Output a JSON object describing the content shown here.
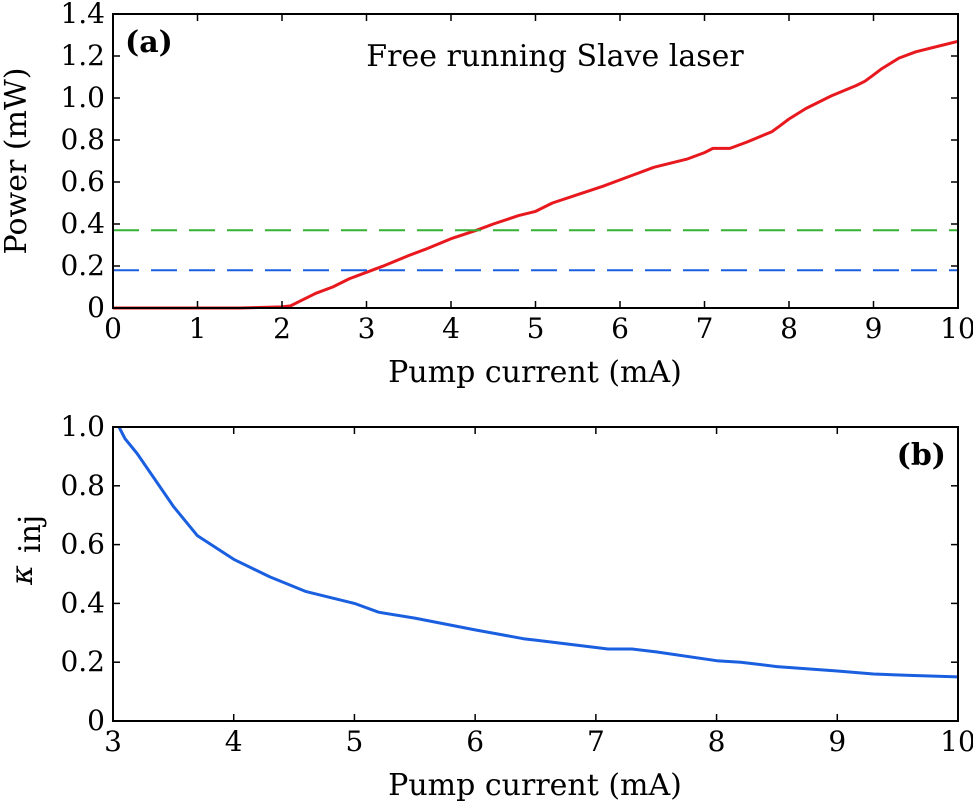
{
  "chart_data": [
    {
      "type": "line",
      "panel_label": "(a)",
      "annotation": "Free running Slave laser",
      "xlabel": "Pump current (mA)",
      "ylabel": "Power (mW)",
      "xlim": [
        0,
        10
      ],
      "ylim": [
        0,
        1.4
      ],
      "xticks": [
        "0",
        "1",
        "2",
        "3",
        "4",
        "5",
        "6",
        "7",
        "8",
        "9",
        "10"
      ],
      "yticks": [
        "0",
        "0.2",
        "0.4",
        "0.6",
        "0.8",
        "1.0",
        "1.2",
        "1.4"
      ],
      "grid": false,
      "series": [
        {
          "color": "#e8191e",
          "style": "solid",
          "x": [
            0,
            1,
            1.5,
            2.0,
            2.1,
            2.2,
            2.4,
            2.6,
            2.8,
            3.0,
            3.2,
            3.5,
            3.7,
            4.0,
            4.3,
            4.5,
            4.8,
            5.0,
            5.2,
            5.5,
            5.8,
            6.0,
            6.2,
            6.4,
            6.5,
            6.8,
            7.0,
            7.1,
            7.3,
            7.5,
            7.8,
            7.9,
            8.0,
            8.2,
            8.5,
            8.8,
            8.9,
            9.0,
            9.1,
            9.3,
            9.5,
            9.8,
            10.0
          ],
          "y": [
            0,
            0,
            0,
            0.005,
            0.01,
            0.03,
            0.07,
            0.1,
            0.14,
            0.17,
            0.2,
            0.25,
            0.28,
            0.33,
            0.37,
            0.4,
            0.44,
            0.46,
            0.5,
            0.54,
            0.58,
            0.61,
            0.64,
            0.67,
            0.68,
            0.71,
            0.74,
            0.76,
            0.76,
            0.79,
            0.84,
            0.87,
            0.9,
            0.95,
            1.01,
            1.06,
            1.08,
            1.11,
            1.14,
            1.19,
            1.22,
            1.25,
            1.27
          ]
        },
        {
          "color": "#33b233",
          "style": "dashed",
          "x": [
            0,
            10
          ],
          "y": [
            0.37,
            0.37
          ]
        },
        {
          "color": "#1a5fe0",
          "style": "dashed",
          "x": [
            0,
            10
          ],
          "y": [
            0.18,
            0.18
          ]
        }
      ]
    },
    {
      "type": "line",
      "panel_label": "(b)",
      "xlabel": "Pump current (mA)",
      "ylabel_main": "κ",
      "ylabel_sub": "inj",
      "xlim": [
        3,
        10
      ],
      "ylim": [
        0,
        1.0
      ],
      "xticks": [
        "3",
        "4",
        "5",
        "6",
        "7",
        "8",
        "9",
        "10"
      ],
      "yticks": [
        "0",
        "0.2",
        "0.4",
        "0.6",
        "0.8",
        "1.0"
      ],
      "grid": false,
      "series": [
        {
          "color": "#1a5fe0",
          "style": "solid",
          "x": [
            3.05,
            3.1,
            3.2,
            3.3,
            3.5,
            3.7,
            4.0,
            4.3,
            4.6,
            5.0,
            5.2,
            5.5,
            6.0,
            6.4,
            6.5,
            7.0,
            7.1,
            7.3,
            7.5,
            8.0,
            8.2,
            8.5,
            9.0,
            9.3,
            9.6,
            10.0
          ],
          "y": [
            1.0,
            0.96,
            0.91,
            0.85,
            0.73,
            0.63,
            0.55,
            0.49,
            0.44,
            0.4,
            0.37,
            0.35,
            0.31,
            0.28,
            0.275,
            0.25,
            0.245,
            0.245,
            0.235,
            0.205,
            0.2,
            0.185,
            0.17,
            0.16,
            0.155,
            0.15
          ]
        }
      ]
    }
  ]
}
